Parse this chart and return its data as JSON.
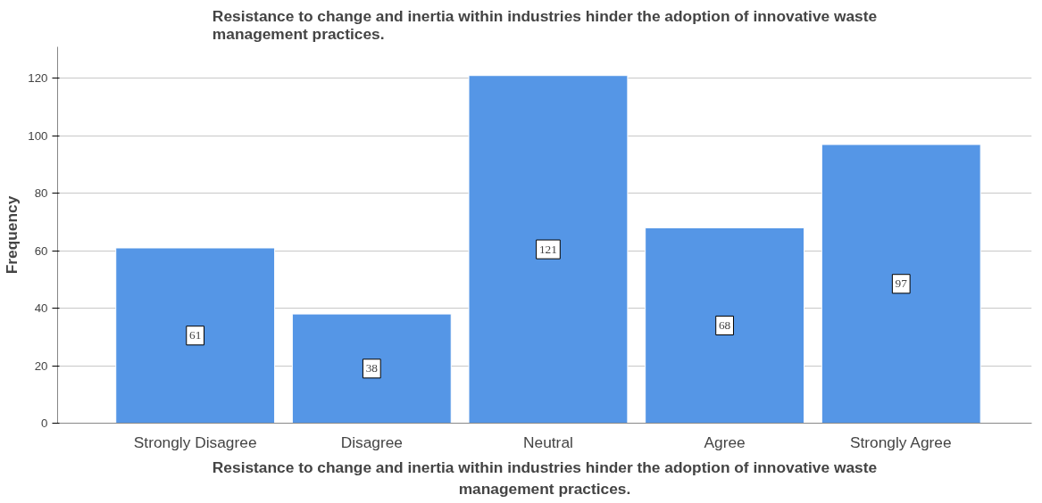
{
  "chart_data": {
    "type": "bar",
    "title": "Resistance to change and inertia within industries hinder the adoption of innovative waste management practices.",
    "xlabel": "Resistance to change and inertia within industries hinder the adoption of innovative waste management practices.",
    "ylabel": "Frequency",
    "categories": [
      "Strongly Disagree",
      "Disagree",
      "Neutral",
      "Agree",
      "Strongly Agree"
    ],
    "values": [
      61,
      38,
      121,
      68,
      97
    ],
    "color": "#5596e6",
    "ylim": [
      0,
      131
    ],
    "yticks": [
      0,
      20,
      40,
      60,
      80,
      100,
      120
    ],
    "grid": "y",
    "data_labels": true
  }
}
